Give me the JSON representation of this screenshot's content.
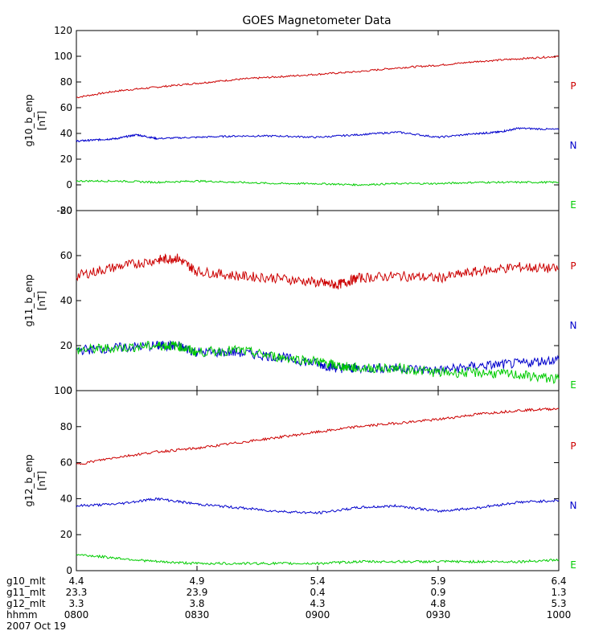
{
  "colors": {
    "P": "#cc0000",
    "N": "#0000cc",
    "E": "#00cc00",
    "axis": "#000000"
  },
  "chart_data": {
    "type": "line",
    "title": "GOES Magnetometer Data",
    "x_domain": [
      0,
      120
    ],
    "x_tick_minutes": [
      0,
      30,
      60,
      90,
      120
    ],
    "panels": [
      {
        "ylabel": "g10_b_enp",
        "unit": "[nT]",
        "ylim": [
          -20,
          120
        ],
        "yticks": [
          -20,
          0,
          20,
          40,
          60,
          80,
          100,
          120
        ],
        "series": [
          {
            "name": "P",
            "x": [
              0,
              10,
              20,
              30,
              40,
              50,
              60,
              70,
              80,
              90,
              100,
              110,
              120
            ],
            "values": [
              68,
              73,
              76,
              79,
              82,
              84,
              86,
              88,
              91,
              93,
              96,
              98,
              100
            ]
          },
          {
            "name": "N",
            "x": [
              0,
              5,
              10,
              15,
              20,
              30,
              40,
              50,
              60,
              70,
              80,
              90,
              100,
              105,
              110,
              120
            ],
            "values": [
              34,
              35,
              36,
              39,
              36,
              37,
              38,
              38,
              37,
              39,
              41,
              37,
              40,
              41,
              44,
              43
            ]
          },
          {
            "name": "E",
            "x": [
              0,
              10,
              20,
              30,
              40,
              50,
              60,
              70,
              80,
              90,
              100,
              110,
              120
            ],
            "values": [
              3,
              3,
              2,
              3,
              2,
              1,
              1,
              0,
              1,
              1,
              2,
              2,
              2
            ]
          }
        ]
      },
      {
        "ylabel": "g11_b_enp",
        "unit": "[nT]",
        "ylim": [
          0,
          80
        ],
        "yticks": [
          0,
          20,
          40,
          60,
          80
        ],
        "series": [
          {
            "name": "P",
            "x": [
              0,
              10,
              20,
              25,
              30,
              40,
              50,
              60,
              65,
              70,
              80,
              90,
              100,
              110,
              120
            ],
            "values": [
              51,
              55,
              58,
              59,
              53,
              51,
              50,
              48,
              47,
              50,
              51,
              50,
              53,
              55,
              54
            ]
          },
          {
            "name": "N",
            "x": [
              0,
              10,
              20,
              25,
              30,
              40,
              50,
              60,
              65,
              70,
              80,
              90,
              100,
              110,
              120
            ],
            "values": [
              18,
              19,
              20,
              20,
              17,
              17,
              15,
              12,
              10,
              10,
              10,
              9,
              11,
              12,
              14
            ]
          },
          {
            "name": "E",
            "x": [
              0,
              10,
              20,
              25,
              30,
              40,
              50,
              60,
              65,
              70,
              80,
              90,
              100,
              110,
              120
            ],
            "values": [
              18,
              19,
              20,
              20,
              17,
              18,
              15,
              13,
              11,
              10,
              10,
              8,
              8,
              7,
              5
            ]
          }
        ]
      },
      {
        "ylabel": "g12_b_enp",
        "unit": "[nT]",
        "ylim": [
          0,
          100
        ],
        "yticks": [
          0,
          20,
          40,
          60,
          80,
          100
        ],
        "series": [
          {
            "name": "P",
            "x": [
              0,
              10,
              20,
              30,
              40,
              50,
              60,
              70,
              80,
              90,
              100,
              110,
              120
            ],
            "values": [
              59,
              63,
              66,
              68,
              71,
              74,
              77,
              80,
              82,
              84,
              87,
              89,
              90
            ]
          },
          {
            "name": "N",
            "x": [
              0,
              10,
              20,
              30,
              40,
              50,
              60,
              70,
              80,
              90,
              100,
              110,
              120
            ],
            "values": [
              36,
              37,
              40,
              37,
              35,
              33,
              32,
              35,
              36,
              33,
              35,
              38,
              39
            ]
          },
          {
            "name": "E",
            "x": [
              0,
              10,
              20,
              30,
              40,
              50,
              60,
              70,
              80,
              90,
              100,
              110,
              120
            ],
            "values": [
              9,
              7,
              5,
              4,
              4,
              4,
              4,
              5,
              5,
              5,
              5,
              5,
              6
            ]
          }
        ]
      }
    ],
    "x_axis_rows": [
      {
        "label": "g10_mlt",
        "values": [
          "4.4",
          "4.9",
          "5.4",
          "5.9",
          "6.4"
        ]
      },
      {
        "label": "g11_mlt",
        "values": [
          "23.3",
          "23.9",
          "0.4",
          "0.9",
          "1.3"
        ]
      },
      {
        "label": "g12_mlt",
        "values": [
          "3.3",
          "3.8",
          "4.3",
          "4.8",
          "5.3"
        ]
      },
      {
        "label": "hhmm",
        "values": [
          "0800",
          "0830",
          "0900",
          "0930",
          "1000"
        ]
      }
    ],
    "date": "2007 Oct 19",
    "components": [
      "P",
      "N",
      "E"
    ]
  }
}
